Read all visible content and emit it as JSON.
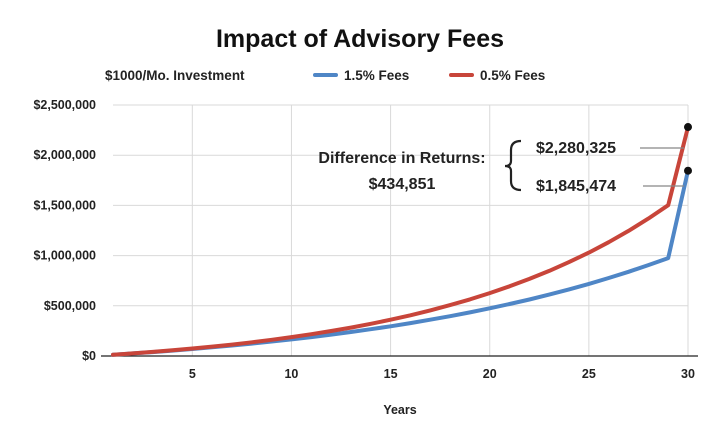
{
  "chart_data": {
    "type": "line",
    "title": "Impact of Advisory Fees",
    "subtitle": "$1000/Mo. Investment",
    "xlabel": "Years",
    "ylabel": "",
    "xlim": [
      1,
      30
    ],
    "ylim": [
      0,
      2500000
    ],
    "x_ticks": [
      5,
      10,
      15,
      20,
      25,
      30
    ],
    "y_ticks": [
      0,
      500000,
      1000000,
      1500000,
      2000000,
      2500000
    ],
    "y_tick_labels": [
      "$0",
      "$500,000",
      "$1,000,000",
      "$1,500,000",
      "$2,000,000",
      "$2,500,000"
    ],
    "grid": true,
    "legend_position": "top",
    "x": [
      1,
      2,
      3,
      4,
      5,
      6,
      7,
      8,
      9,
      10,
      11,
      12,
      13,
      14,
      15,
      16,
      17,
      18,
      19,
      20,
      21,
      22,
      23,
      24,
      25,
      26,
      27,
      28,
      29,
      30
    ],
    "series": [
      {
        "name": "1.5% Fees",
        "color": "#4f86c6",
        "values": [
          12300,
          25400,
          39300,
          54200,
          70000,
          86900,
          104800,
          123800,
          144100,
          165600,
          188600,
          213100,
          239100,
          266800,
          296300,
          327700,
          361100,
          396700,
          434500,
          474800,
          517600,
          563200,
          611700,
          663300,
          718200,
          776600,
          838800,
          904900,
          975300,
          1845474
        ]
      },
      {
        "name": "0.5% Fees",
        "color": "#c8453a",
        "values": [
          12400,
          25900,
          40700,
          56800,
          74300,
          93300,
          114000,
          136600,
          161200,
          187900,
          217000,
          248700,
          283100,
          320600,
          361400,
          405800,
          454100,
          506700,
          563900,
          626200,
          693900,
          767600,
          847800,
          935100,
          1030100,
          1133500,
          1246000,
          1368400,
          1501600,
          2280325
        ]
      }
    ],
    "annotations": {
      "difference_label": "Difference in Returns:",
      "difference_value": "$434,851",
      "top_value": "$2,280,325",
      "bottom_value": "$1,845,474",
      "bracket": "{"
    }
  }
}
